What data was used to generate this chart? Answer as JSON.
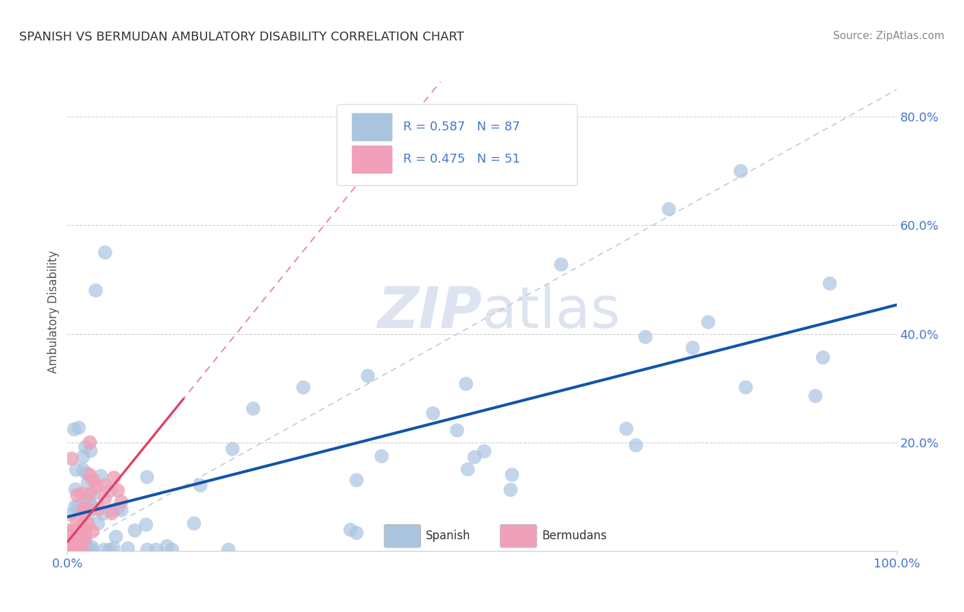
{
  "title": "Spanish vs Bermudan Ambulatory Disability Correlation Chart",
  "title_display": "SPANISH VS BERMUDAN AMBULATORY DISABILITY CORRELATION CHART",
  "source": "Source: ZipAtlas.com",
  "ylabel": "Ambulatory Disability",
  "xlim": [
    0,
    1.0
  ],
  "ylim": [
    0,
    0.88
  ],
  "R_spanish": 0.587,
  "N_spanish": 87,
  "R_bermudan": 0.475,
  "N_bermudan": 51,
  "spanish_color": "#aac4e0",
  "bermudan_color": "#f0a0b8",
  "spanish_line_color": "#1155aa",
  "bermudan_line_color": "#dd4466",
  "ref_line_color": "#c0c8d8",
  "grid_color": "#cccccc",
  "background_color": "#ffffff",
  "tick_color": "#4477cc",
  "title_color": "#333333",
  "source_color": "#888888",
  "ylabel_color": "#555555",
  "watermark_color": "#dde4f0"
}
